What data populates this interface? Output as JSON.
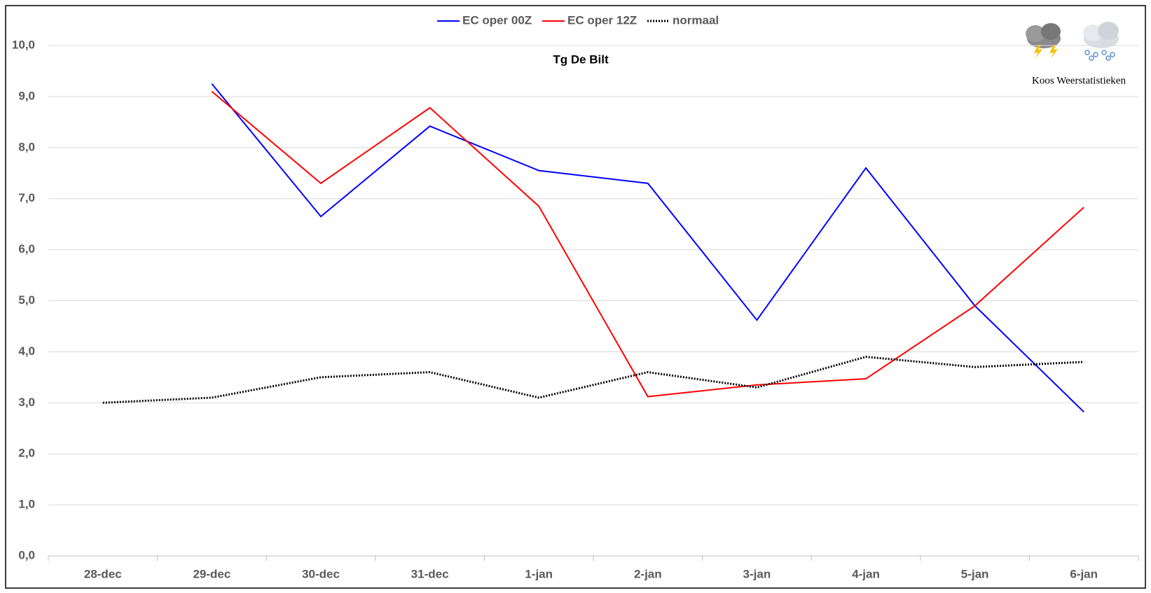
{
  "chart_data": {
    "type": "line",
    "title": "Tg De Bilt",
    "categories": [
      "28-dec",
      "29-dec",
      "30-dec",
      "31-dec",
      "1-jan",
      "2-jan",
      "3-jan",
      "4-jan",
      "5-jan",
      "6-jan"
    ],
    "series": [
      {
        "name": "EC oper 00Z",
        "color": "#0000ff",
        "values": [
          null,
          9.25,
          6.65,
          8.42,
          7.55,
          7.3,
          4.62,
          7.6,
          4.9,
          2.82
        ]
      },
      {
        "name": "EC oper 12Z",
        "color": "#ff0000",
        "values": [
          null,
          9.1,
          7.3,
          8.78,
          6.85,
          3.12,
          3.35,
          3.47,
          4.9,
          6.83
        ]
      },
      {
        "name": "normaal",
        "color": "#000000",
        "dash": "dotted",
        "values": [
          3.0,
          3.1,
          3.5,
          3.6,
          3.1,
          3.6,
          3.3,
          3.9,
          3.7,
          3.8
        ]
      }
    ],
    "ylim": [
      0,
      10
    ],
    "yticks": [
      {
        "value": 0,
        "label": "0,0"
      },
      {
        "value": 1,
        "label": "1,0"
      },
      {
        "value": 2,
        "label": "2,0"
      },
      {
        "value": 3,
        "label": "3,0"
      },
      {
        "value": 4,
        "label": "4,0"
      },
      {
        "value": 5,
        "label": "5,0"
      },
      {
        "value": 6,
        "label": "6,0"
      },
      {
        "value": 7,
        "label": "7,0"
      },
      {
        "value": 8,
        "label": "8,0"
      },
      {
        "value": 9,
        "label": "9,0"
      },
      {
        "value": 10,
        "label": "10,0"
      }
    ],
    "grid": true,
    "legend": "top",
    "watermark": "Koos Weerstatistieken"
  }
}
